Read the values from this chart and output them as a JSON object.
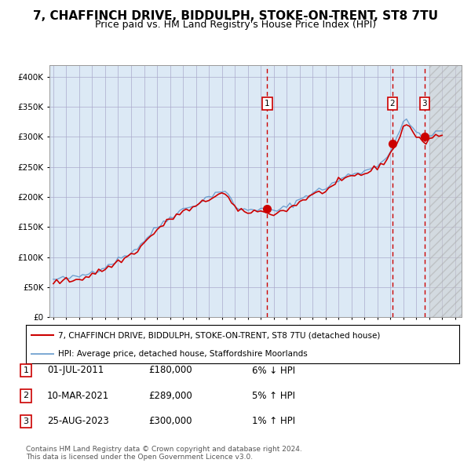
{
  "title": "7, CHAFFINCH DRIVE, BIDDULPH, STOKE-ON-TRENT, ST8 7TU",
  "subtitle": "Price paid vs. HM Land Registry's House Price Index (HPI)",
  "title_fontsize": 11,
  "subtitle_fontsize": 9,
  "ylabel_ticks": [
    "£0",
    "£50K",
    "£100K",
    "£150K",
    "£200K",
    "£250K",
    "£300K",
    "£350K",
    "£400K"
  ],
  "ytick_values": [
    0,
    50000,
    100000,
    150000,
    200000,
    250000,
    300000,
    350000,
    400000
  ],
  "ylim": [
    0,
    420000
  ],
  "xlim_start": 1994.7,
  "xlim_end": 2026.5,
  "background_light": "#dce9f5",
  "hatch_start": 2024.0,
  "transactions": [
    {
      "date_num": 2011.5,
      "price": 180000,
      "label": "1"
    },
    {
      "date_num": 2021.17,
      "price": 289000,
      "label": "2"
    },
    {
      "date_num": 2023.65,
      "price": 300000,
      "label": "3"
    }
  ],
  "legend_entries": [
    {
      "label": "7, CHAFFINCH DRIVE, BIDDULPH, STOKE-ON-TRENT, ST8 7TU (detached house)",
      "color": "#cc0000",
      "lw": 1.5
    },
    {
      "label": "HPI: Average price, detached house, Staffordshire Moorlands",
      "color": "#6699cc",
      "lw": 1.2
    }
  ],
  "table_rows": [
    {
      "num": "1",
      "date": "01-JUL-2011",
      "price": "£180,000",
      "hpi": "6% ↓ HPI"
    },
    {
      "num": "2",
      "date": "10-MAR-2021",
      "price": "£289,000",
      "hpi": "5% ↑ HPI"
    },
    {
      "num": "3",
      "date": "25-AUG-2023",
      "price": "£300,000",
      "hpi": "1% ↑ HPI"
    }
  ],
  "footer": "Contains HM Land Registry data © Crown copyright and database right 2024.\nThis data is licensed under the Open Government Licence v3.0.",
  "red_color": "#cc0000",
  "blue_color": "#6699cc",
  "grid_color": "#aaaacc",
  "hpi_x": [
    1995.0,
    1995.25,
    1995.5,
    1995.75,
    1996.0,
    1996.25,
    1996.5,
    1996.75,
    1997.0,
    1997.25,
    1997.5,
    1997.75,
    1998.0,
    1998.25,
    1998.5,
    1998.75,
    1999.0,
    1999.25,
    1999.5,
    1999.75,
    2000.0,
    2000.25,
    2000.5,
    2000.75,
    2001.0,
    2001.25,
    2001.5,
    2001.75,
    2002.0,
    2002.25,
    2002.5,
    2002.75,
    2003.0,
    2003.25,
    2003.5,
    2003.75,
    2004.0,
    2004.25,
    2004.5,
    2004.75,
    2005.0,
    2005.25,
    2005.5,
    2005.75,
    2006.0,
    2006.25,
    2006.5,
    2006.75,
    2007.0,
    2007.25,
    2007.5,
    2007.75,
    2008.0,
    2008.25,
    2008.5,
    2008.75,
    2009.0,
    2009.25,
    2009.5,
    2009.75,
    2010.0,
    2010.25,
    2010.5,
    2010.75,
    2011.0,
    2011.25,
    2011.5,
    2011.75,
    2012.0,
    2012.25,
    2012.5,
    2012.75,
    2013.0,
    2013.25,
    2013.5,
    2013.75,
    2014.0,
    2014.25,
    2014.5,
    2014.75,
    2015.0,
    2015.25,
    2015.5,
    2015.75,
    2016.0,
    2016.25,
    2016.5,
    2016.75,
    2017.0,
    2017.25,
    2017.5,
    2017.75,
    2018.0,
    2018.25,
    2018.5,
    2018.75,
    2019.0,
    2019.25,
    2019.5,
    2019.75,
    2020.0,
    2020.25,
    2020.5,
    2020.75,
    2021.0,
    2021.25,
    2021.5,
    2021.75,
    2022.0,
    2022.25,
    2022.5,
    2022.75,
    2023.0,
    2023.25,
    2023.5,
    2023.75,
    2024.0,
    2024.25,
    2024.5,
    2024.75,
    2025.0
  ],
  "hpi_y": [
    62000,
    63000,
    63500,
    64000,
    64500,
    65000,
    65500,
    66500,
    68000,
    69500,
    71000,
    73000,
    76000,
    78000,
    80000,
    82000,
    84000,
    87000,
    90000,
    93000,
    96000,
    99000,
    102000,
    105000,
    108000,
    112000,
    116000,
    121000,
    127000,
    133000,
    138000,
    144000,
    149000,
    154000,
    158000,
    162000,
    166000,
    170000,
    174000,
    177000,
    179000,
    181000,
    183000,
    185000,
    188000,
    191000,
    194000,
    197000,
    200000,
    204000,
    207000,
    209000,
    210000,
    208000,
    202000,
    194000,
    186000,
    181000,
    178000,
    178000,
    179000,
    180000,
    181000,
    180000,
    179000,
    178000,
    178000,
    177000,
    177000,
    178000,
    179000,
    181000,
    183000,
    186000,
    189000,
    192000,
    196000,
    199000,
    202000,
    205000,
    207000,
    209000,
    211000,
    213000,
    215000,
    218000,
    221000,
    224000,
    227000,
    230000,
    233000,
    236000,
    238000,
    240000,
    241000,
    242000,
    243000,
    245000,
    247000,
    250000,
    254000,
    258000,
    262000,
    268000,
    275000,
    285000,
    295000,
    310000,
    325000,
    330000,
    325000,
    315000,
    308000,
    300000,
    296000,
    298000,
    302000,
    305000,
    307000,
    308000,
    308000
  ],
  "prop_y": [
    58000,
    59000,
    59500,
    60000,
    60500,
    61000,
    61500,
    62500,
    64000,
    65500,
    67000,
    69000,
    72000,
    74000,
    76000,
    78000,
    80000,
    83000,
    86000,
    89000,
    92000,
    95000,
    98000,
    101000,
    104000,
    108000,
    112000,
    117000,
    123000,
    129000,
    134000,
    140000,
    145000,
    150000,
    154000,
    158000,
    162000,
    166000,
    170000,
    173000,
    175000,
    177000,
    179000,
    181000,
    184000,
    187000,
    190000,
    193000,
    196000,
    200000,
    203000,
    205000,
    206000,
    204000,
    198000,
    190000,
    182000,
    177000,
    174000,
    174000,
    175000,
    176000,
    177000,
    176000,
    175000,
    174000,
    174000,
    173000,
    173000,
    174000,
    175000,
    177000,
    179000,
    182000,
    185000,
    188000,
    192000,
    195000,
    198000,
    201000,
    203000,
    205000,
    207000,
    209000,
    211000,
    214000,
    217000,
    220000,
    223000,
    226000,
    229000,
    232000,
    234000,
    236000,
    237000,
    238000,
    239000,
    241000,
    243000,
    246000,
    250000,
    254000,
    258000,
    264000,
    271000,
    281000,
    291000,
    302000,
    316000,
    322000,
    317000,
    308000,
    301000,
    294000,
    291000,
    293000,
    297000,
    300000,
    302000,
    303000,
    303000
  ]
}
